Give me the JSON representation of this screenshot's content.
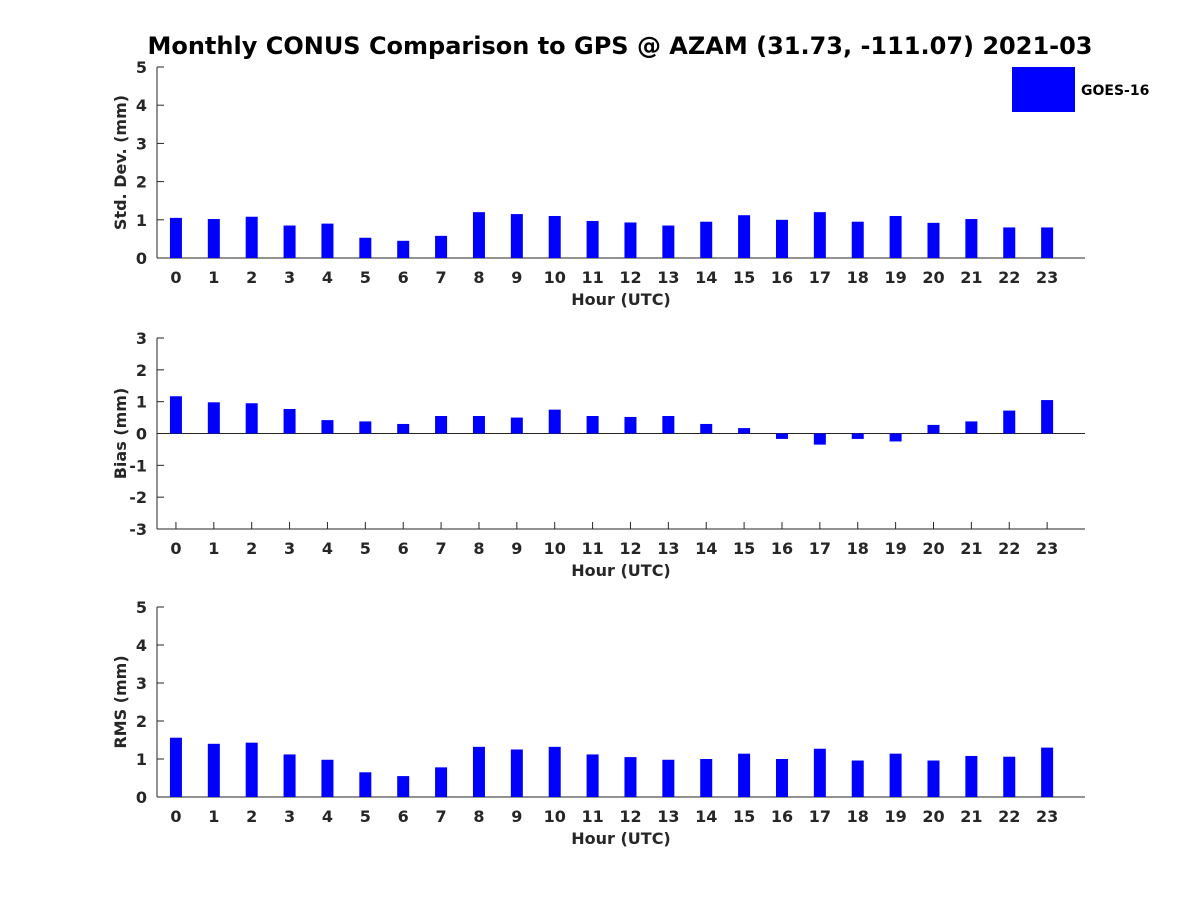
{
  "chart_data": {
    "type": "bar",
    "title": "Monthly CONUS Comparison to GPS @ AZAM (31.73, -111.07) 2021-03",
    "legend": {
      "label": "GOES-16",
      "placement": "top-right",
      "color": "#0000FF"
    },
    "categories": [
      "0",
      "1",
      "2",
      "3",
      "4",
      "5",
      "6",
      "7",
      "8",
      "9",
      "10",
      "11",
      "12",
      "13",
      "14",
      "15",
      "16",
      "17",
      "18",
      "19",
      "20",
      "21",
      "22",
      "23"
    ],
    "panels": [
      {
        "ylabel": "Std. Dev. (mm)",
        "xlabel": "Hour (UTC)",
        "ylim": [
          0,
          5
        ],
        "yticks": [
          "0",
          "1",
          "2",
          "3",
          "4",
          "5"
        ],
        "series": [
          {
            "name": "GOES-16",
            "color": "#0000FF",
            "values": [
              1.05,
              1.02,
              1.08,
              0.85,
              0.9,
              0.53,
              0.45,
              0.58,
              1.2,
              1.15,
              1.1,
              0.97,
              0.93,
              0.85,
              0.95,
              1.12,
              1.0,
              1.2,
              0.95,
              1.1,
              0.92,
              1.02,
              0.8,
              0.8
            ]
          }
        ]
      },
      {
        "ylabel": "Bias (mm)",
        "xlabel": "Hour (UTC)",
        "ylim": [
          -3,
          3
        ],
        "yticks": [
          "-3",
          "-2",
          "-1",
          "0",
          "1",
          "2",
          "3"
        ],
        "zero_line": true,
        "series": [
          {
            "name": "GOES-16",
            "color": "#0000FF",
            "values": [
              1.17,
              0.98,
              0.95,
              0.77,
              0.42,
              0.38,
              0.3,
              0.55,
              0.55,
              0.5,
              0.75,
              0.55,
              0.52,
              0.55,
              0.3,
              0.17,
              -0.17,
              -0.35,
              -0.17,
              -0.25,
              0.27,
              0.38,
              0.72,
              1.05
            ]
          }
        ]
      },
      {
        "ylabel": "RMS (mm)",
        "xlabel": "Hour (UTC)",
        "ylim": [
          0,
          5
        ],
        "yticks": [
          "0",
          "1",
          "2",
          "3",
          "4",
          "5"
        ],
        "series": [
          {
            "name": "GOES-16",
            "color": "#0000FF",
            "values": [
              1.56,
              1.4,
              1.43,
              1.12,
              0.98,
              0.65,
              0.55,
              0.78,
              1.32,
              1.25,
              1.32,
              1.12,
              1.05,
              0.98,
              1.0,
              1.14,
              1.0,
              1.27,
              0.96,
              1.14,
              0.96,
              1.08,
              1.06,
              1.3
            ]
          }
        ]
      }
    ]
  }
}
